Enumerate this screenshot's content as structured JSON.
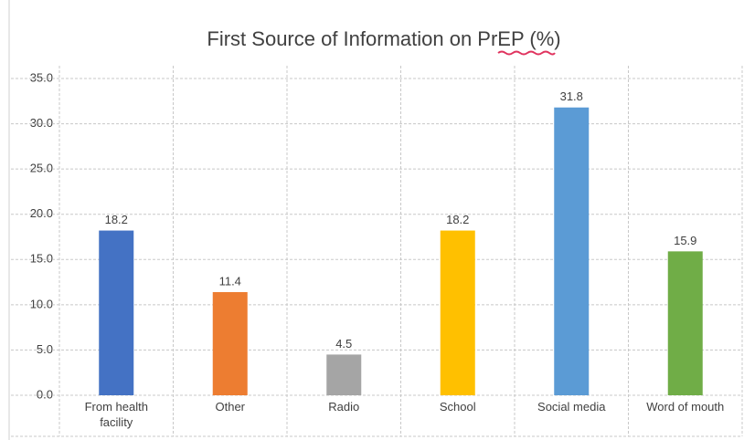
{
  "chart_data": {
    "type": "bar",
    "title": "First Source of Information on PrEP (%)",
    "categories": [
      "From health facility",
      "Other",
      "Radio",
      "School",
      "Social media",
      "Word of mouth"
    ],
    "values": [
      18.2,
      11.4,
      4.5,
      18.2,
      31.8,
      15.9
    ],
    "colors": [
      "#4472c4",
      "#ed7d31",
      "#a5a5a5",
      "#ffc000",
      "#5b9bd5",
      "#70ad47"
    ],
    "ylim": [
      0,
      35
    ],
    "yticks": [
      {
        "value": 0,
        "label": "0.0"
      },
      {
        "value": 5,
        "label": "5.0"
      },
      {
        "value": 10,
        "label": "10.0"
      },
      {
        "value": 15,
        "label": "15.0"
      },
      {
        "value": 20,
        "label": "20.0"
      },
      {
        "value": 25,
        "label": "25.0"
      },
      {
        "value": 30,
        "label": "30.0"
      },
      {
        "value": 35,
        "label": "35.0"
      }
    ],
    "grid": true
  }
}
